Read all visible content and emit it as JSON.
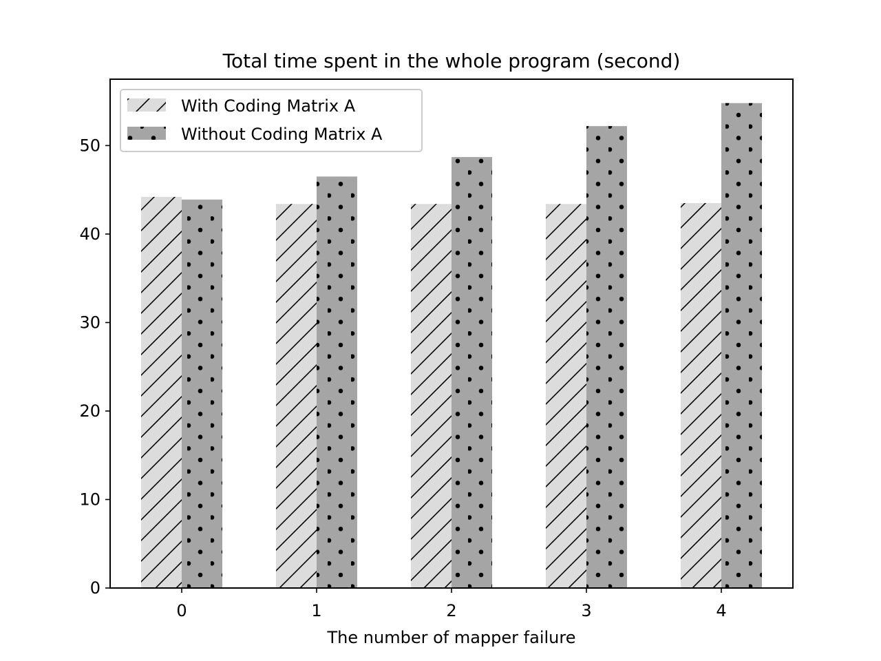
{
  "chart_data": {
    "type": "bar",
    "title": "Total time spent in the whole program (second)",
    "xlabel": "The number of mapper failure",
    "ylabel": "",
    "categories": [
      "0",
      "1",
      "2",
      "3",
      "4"
    ],
    "ylim": [
      0,
      57.5
    ],
    "yticks": [
      0,
      10,
      20,
      30,
      40,
      50
    ],
    "series": [
      {
        "name": "With Coding Matrix A",
        "values": [
          44.2,
          43.4,
          43.4,
          43.4,
          43.5
        ],
        "color": "#dcdcdc",
        "hatch": "diagonal-lines"
      },
      {
        "name": "Without Coding Matrix A",
        "values": [
          43.9,
          46.5,
          48.7,
          52.2,
          54.8
        ],
        "color": "#a5a5a5",
        "hatch": "dots"
      }
    ],
    "grid": false,
    "legend_position": "top-left"
  }
}
